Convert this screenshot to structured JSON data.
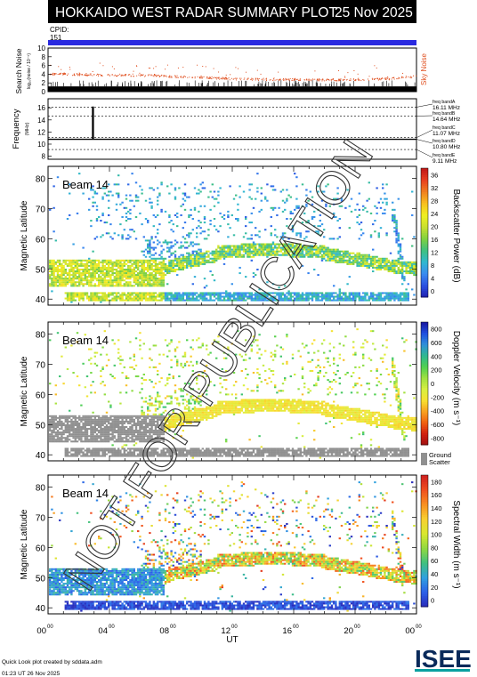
{
  "header": {
    "title": "HOKKAIDO WEST RADAR SUMMARY PLOT",
    "date": "25 Nov 2025",
    "cpid_label": "CPID:",
    "cpid_value": "151"
  },
  "watermark": "NOT FOR PUBLICATION",
  "chart_data": [
    {
      "type": "scatter",
      "panel": "search-noise",
      "ylabel": "Search Noise",
      "ylabel_sub": "log₁₀(noise / 10⁻⁵)",
      "legend": "Sky Noise",
      "yticks": [
        "0",
        "2",
        "4",
        "6",
        "8",
        "10"
      ],
      "ylim": [
        0,
        10
      ],
      "series": [
        {
          "name": "Sky Noise",
          "color": "#e05020",
          "x": [
            0,
            2,
            4,
            6,
            8,
            10,
            12,
            14,
            16,
            18,
            20,
            22,
            24
          ],
          "y": [
            4.2,
            4.0,
            3.9,
            3.8,
            3.6,
            3.4,
            3.0,
            2.9,
            2.9,
            2.8,
            2.8,
            3.0,
            3.6
          ]
        }
      ],
      "bars_level": 1.2
    },
    {
      "type": "line",
      "panel": "frequency",
      "ylabel": "Frequency",
      "ylabel_sub": "(MHz)",
      "yticks": [
        "8",
        "10",
        "12",
        "14",
        "16"
      ],
      "ylim": [
        7.5,
        17.5
      ],
      "freq_bands": [
        {
          "label": "freq bandA",
          "value": "16.11 MHz"
        },
        {
          "label": "freq bandB",
          "value": "14.64 MHz"
        },
        {
          "label": "freq bandC",
          "value": "11.07 MHz"
        },
        {
          "label": "freq bandD",
          "value": "10.80 MHz"
        },
        {
          "label": "freq bandE",
          "value": "9.11 MHz"
        }
      ],
      "band_levels": [
        16.11,
        14.64,
        11.07,
        10.8,
        9.11
      ],
      "series": [
        {
          "name": "operating frequency",
          "x": [
            0,
            2.9,
            2.9,
            2.95,
            2.95,
            24
          ],
          "y": [
            10.8,
            10.8,
            16.11,
            16.11,
            10.8,
            10.8
          ]
        }
      ]
    },
    {
      "type": "heatmap",
      "panel": "backscatter-power",
      "beam_label": "Beam 14",
      "ylabel": "Magnetic Latitude",
      "yticks": [
        "40",
        "50",
        "60",
        "70",
        "80"
      ],
      "ylim": [
        38,
        84
      ],
      "colorbar_label": "Backscatter Power (dB)",
      "colorbar_ticks": [
        "0",
        "4",
        "8",
        "12",
        "16",
        "20",
        "24",
        "28",
        "32",
        "36"
      ],
      "crange": [
        0,
        38
      ]
    },
    {
      "type": "heatmap",
      "panel": "doppler-velocity",
      "beam_label": "Beam 14",
      "ylabel": "Magnetic Latitude",
      "yticks": [
        "40",
        "50",
        "60",
        "70",
        "80"
      ],
      "ylim": [
        38,
        84
      ],
      "colorbar_label": "Doppler Velocity (m s⁻¹)",
      "colorbar_ticks": [
        "-800",
        "-600",
        "-400",
        "-200",
        "0",
        "200",
        "400",
        "600",
        "800"
      ],
      "crange": [
        -900,
        900
      ],
      "ground_scatter_label": "Ground Scatter"
    },
    {
      "type": "heatmap",
      "panel": "spectral-width",
      "beam_label": "Beam 14",
      "ylabel": "Magnetic Latitude",
      "yticks": [
        "40",
        "50",
        "60",
        "70",
        "80"
      ],
      "ylim": [
        38,
        84
      ],
      "colorbar_label": "Spectral Width (m s⁻¹)",
      "colorbar_ticks": [
        "0",
        "20",
        "40",
        "60",
        "80",
        "100",
        "120",
        "140",
        "160",
        "180"
      ],
      "crange": [
        0,
        190
      ]
    }
  ],
  "xaxis": {
    "label": "UT",
    "ticks": [
      {
        "hour": "00",
        "min": "00"
      },
      {
        "hour": "04",
        "min": "00"
      },
      {
        "hour": "08",
        "min": "00"
      },
      {
        "hour": "12",
        "min": "00"
      },
      {
        "hour": "16",
        "min": "00"
      },
      {
        "hour": "20",
        "min": "00"
      },
      {
        "hour": "00",
        "min": "00"
      }
    ],
    "xlim": [
      0,
      24
    ]
  },
  "footer": {
    "credit": "Quick Look plot created by sddata.adm",
    "timestamp": "01:23 UT 26 Nov 2025",
    "logo_text": "ISEE"
  },
  "colors": {
    "cpid_bar": "#2a2ae0",
    "noise_dots": "#e05020",
    "logo_teal": "#0aa0a0",
    "logo_dark": "#0a2a5a",
    "ground_scatter": "#909090"
  }
}
